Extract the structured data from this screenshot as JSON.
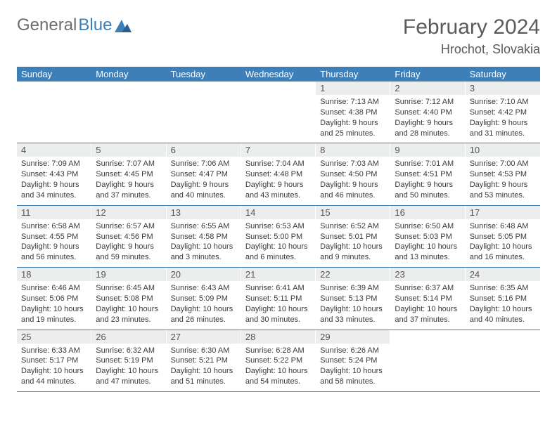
{
  "logo": {
    "text1": "General",
    "text2": "Blue"
  },
  "title": "February 2024",
  "location": "Hrochot, Slovakia",
  "colors": {
    "header_bg": "#3e7fb8",
    "daynum_bg": "#eceded",
    "text_dark": "#3a3a3a",
    "title_color": "#5a5a5a"
  },
  "weekdays": [
    "Sunday",
    "Monday",
    "Tuesday",
    "Wednesday",
    "Thursday",
    "Friday",
    "Saturday"
  ],
  "weeks": [
    [
      {
        "n": "",
        "lines": []
      },
      {
        "n": "",
        "lines": []
      },
      {
        "n": "",
        "lines": []
      },
      {
        "n": "",
        "lines": []
      },
      {
        "n": "1",
        "lines": [
          "Sunrise: 7:13 AM",
          "Sunset: 4:38 PM",
          "Daylight: 9 hours",
          "and 25 minutes."
        ]
      },
      {
        "n": "2",
        "lines": [
          "Sunrise: 7:12 AM",
          "Sunset: 4:40 PM",
          "Daylight: 9 hours",
          "and 28 minutes."
        ]
      },
      {
        "n": "3",
        "lines": [
          "Sunrise: 7:10 AM",
          "Sunset: 4:42 PM",
          "Daylight: 9 hours",
          "and 31 minutes."
        ]
      }
    ],
    [
      {
        "n": "4",
        "lines": [
          "Sunrise: 7:09 AM",
          "Sunset: 4:43 PM",
          "Daylight: 9 hours",
          "and 34 minutes."
        ]
      },
      {
        "n": "5",
        "lines": [
          "Sunrise: 7:07 AM",
          "Sunset: 4:45 PM",
          "Daylight: 9 hours",
          "and 37 minutes."
        ]
      },
      {
        "n": "6",
        "lines": [
          "Sunrise: 7:06 AM",
          "Sunset: 4:47 PM",
          "Daylight: 9 hours",
          "and 40 minutes."
        ]
      },
      {
        "n": "7",
        "lines": [
          "Sunrise: 7:04 AM",
          "Sunset: 4:48 PM",
          "Daylight: 9 hours",
          "and 43 minutes."
        ]
      },
      {
        "n": "8",
        "lines": [
          "Sunrise: 7:03 AM",
          "Sunset: 4:50 PM",
          "Daylight: 9 hours",
          "and 46 minutes."
        ]
      },
      {
        "n": "9",
        "lines": [
          "Sunrise: 7:01 AM",
          "Sunset: 4:51 PM",
          "Daylight: 9 hours",
          "and 50 minutes."
        ]
      },
      {
        "n": "10",
        "lines": [
          "Sunrise: 7:00 AM",
          "Sunset: 4:53 PM",
          "Daylight: 9 hours",
          "and 53 minutes."
        ]
      }
    ],
    [
      {
        "n": "11",
        "lines": [
          "Sunrise: 6:58 AM",
          "Sunset: 4:55 PM",
          "Daylight: 9 hours",
          "and 56 minutes."
        ]
      },
      {
        "n": "12",
        "lines": [
          "Sunrise: 6:57 AM",
          "Sunset: 4:56 PM",
          "Daylight: 9 hours",
          "and 59 minutes."
        ]
      },
      {
        "n": "13",
        "lines": [
          "Sunrise: 6:55 AM",
          "Sunset: 4:58 PM",
          "Daylight: 10 hours",
          "and 3 minutes."
        ]
      },
      {
        "n": "14",
        "lines": [
          "Sunrise: 6:53 AM",
          "Sunset: 5:00 PM",
          "Daylight: 10 hours",
          "and 6 minutes."
        ]
      },
      {
        "n": "15",
        "lines": [
          "Sunrise: 6:52 AM",
          "Sunset: 5:01 PM",
          "Daylight: 10 hours",
          "and 9 minutes."
        ]
      },
      {
        "n": "16",
        "lines": [
          "Sunrise: 6:50 AM",
          "Sunset: 5:03 PM",
          "Daylight: 10 hours",
          "and 13 minutes."
        ]
      },
      {
        "n": "17",
        "lines": [
          "Sunrise: 6:48 AM",
          "Sunset: 5:05 PM",
          "Daylight: 10 hours",
          "and 16 minutes."
        ]
      }
    ],
    [
      {
        "n": "18",
        "lines": [
          "Sunrise: 6:46 AM",
          "Sunset: 5:06 PM",
          "Daylight: 10 hours",
          "and 19 minutes."
        ]
      },
      {
        "n": "19",
        "lines": [
          "Sunrise: 6:45 AM",
          "Sunset: 5:08 PM",
          "Daylight: 10 hours",
          "and 23 minutes."
        ]
      },
      {
        "n": "20",
        "lines": [
          "Sunrise: 6:43 AM",
          "Sunset: 5:09 PM",
          "Daylight: 10 hours",
          "and 26 minutes."
        ]
      },
      {
        "n": "21",
        "lines": [
          "Sunrise: 6:41 AM",
          "Sunset: 5:11 PM",
          "Daylight: 10 hours",
          "and 30 minutes."
        ]
      },
      {
        "n": "22",
        "lines": [
          "Sunrise: 6:39 AM",
          "Sunset: 5:13 PM",
          "Daylight: 10 hours",
          "and 33 minutes."
        ]
      },
      {
        "n": "23",
        "lines": [
          "Sunrise: 6:37 AM",
          "Sunset: 5:14 PM",
          "Daylight: 10 hours",
          "and 37 minutes."
        ]
      },
      {
        "n": "24",
        "lines": [
          "Sunrise: 6:35 AM",
          "Sunset: 5:16 PM",
          "Daylight: 10 hours",
          "and 40 minutes."
        ]
      }
    ],
    [
      {
        "n": "25",
        "lines": [
          "Sunrise: 6:33 AM",
          "Sunset: 5:17 PM",
          "Daylight: 10 hours",
          "and 44 minutes."
        ]
      },
      {
        "n": "26",
        "lines": [
          "Sunrise: 6:32 AM",
          "Sunset: 5:19 PM",
          "Daylight: 10 hours",
          "and 47 minutes."
        ]
      },
      {
        "n": "27",
        "lines": [
          "Sunrise: 6:30 AM",
          "Sunset: 5:21 PM",
          "Daylight: 10 hours",
          "and 51 minutes."
        ]
      },
      {
        "n": "28",
        "lines": [
          "Sunrise: 6:28 AM",
          "Sunset: 5:22 PM",
          "Daylight: 10 hours",
          "and 54 minutes."
        ]
      },
      {
        "n": "29",
        "lines": [
          "Sunrise: 6:26 AM",
          "Sunset: 5:24 PM",
          "Daylight: 10 hours",
          "and 58 minutes."
        ]
      },
      {
        "n": "",
        "lines": []
      },
      {
        "n": "",
        "lines": []
      }
    ]
  ]
}
